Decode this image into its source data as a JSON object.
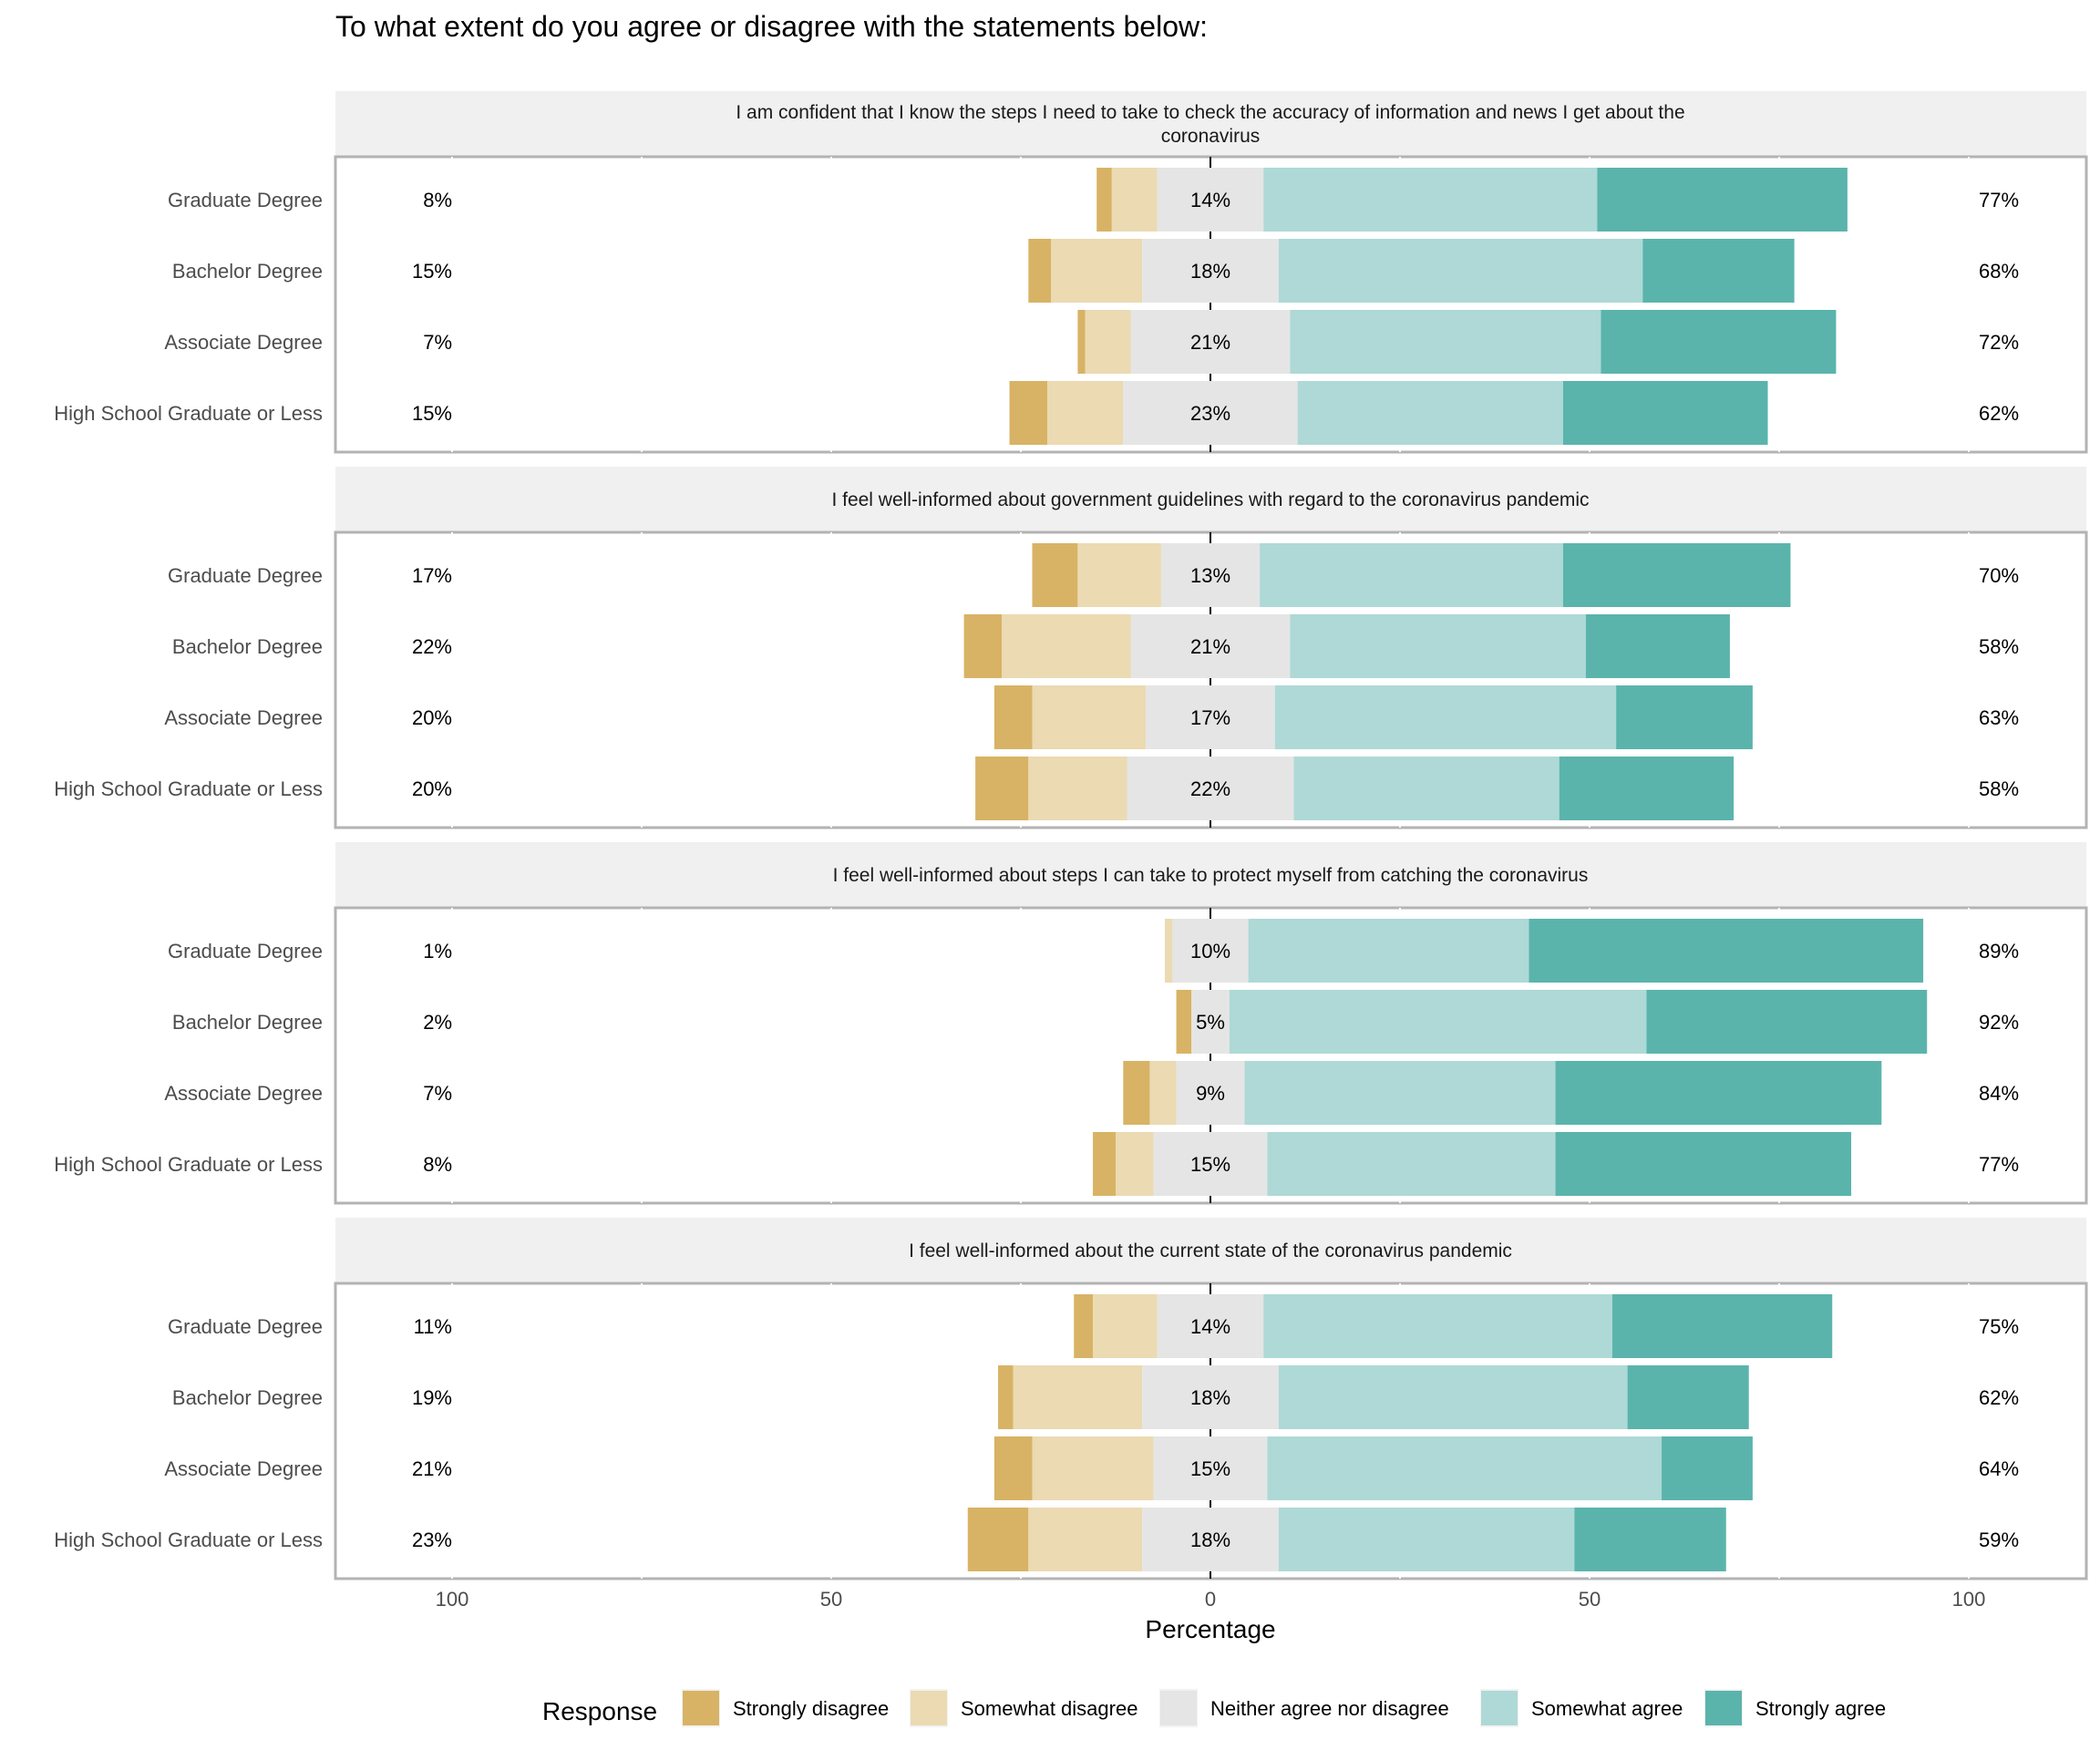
{
  "chart_data": {
    "type": "bar",
    "subtype": "diverging-stacked-horizontal",
    "title": "To what extent do you agree or disagree with the statements below:",
    "xlabel": "Percentage",
    "ylabel": "",
    "xlim": [
      -115,
      115
    ],
    "x_ticks": [
      -100,
      -50,
      0,
      50,
      100
    ],
    "x_tick_labels": [
      "100",
      "50",
      "0",
      "50",
      "100"
    ],
    "grid": true,
    "legend": {
      "title": "Response",
      "position": "bottom",
      "entries": [
        {
          "name": "Strongly disagree",
          "color": "#D8B365"
        },
        {
          "name": "Somewhat disagree",
          "color": "#EBDAB2"
        },
        {
          "name": "Neither agree nor disagree",
          "color": "#E5E5E5"
        },
        {
          "name": "Somewhat agree",
          "color": "#AED9D6"
        },
        {
          "name": "Strongly agree",
          "color": "#5AB4AC"
        }
      ]
    },
    "categories": [
      "Graduate Degree",
      "Bachelor Degree",
      "Associate Degree",
      "High School Graduate or Less"
    ],
    "panels": [
      {
        "strip": [
          "I am confident that I know the steps I need to take to check the accuracy of information and news I get about the",
          "coronavirus"
        ],
        "rows": [
          {
            "category": "Graduate Degree",
            "values": [
              2,
              6,
              14,
              44,
              33
            ],
            "left_label": "8%",
            "center_label": "14%",
            "right_label": "77%"
          },
          {
            "category": "Bachelor Degree",
            "values": [
              3,
              12,
              18,
              48,
              20
            ],
            "left_label": "15%",
            "center_label": "18%",
            "right_label": "68%"
          },
          {
            "category": "Associate Degree",
            "values": [
              1,
              6,
              21,
              41,
              31
            ],
            "left_label": "7%",
            "center_label": "21%",
            "right_label": "72%"
          },
          {
            "category": "High School Graduate or Less",
            "values": [
              5,
              10,
              23,
              35,
              27
            ],
            "left_label": "15%",
            "center_label": "23%",
            "right_label": "62%"
          }
        ]
      },
      {
        "strip": [
          "I feel well-informed about government guidelines with regard to the coronavirus pandemic"
        ],
        "rows": [
          {
            "category": "Graduate Degree",
            "values": [
              6,
              11,
              13,
              40,
              30
            ],
            "left_label": "17%",
            "center_label": "13%",
            "right_label": "70%"
          },
          {
            "category": "Bachelor Degree",
            "values": [
              5,
              17,
              21,
              39,
              19
            ],
            "left_label": "22%",
            "center_label": "21%",
            "right_label": "58%"
          },
          {
            "category": "Associate Degree",
            "values": [
              5,
              15,
              17,
              45,
              18
            ],
            "left_label": "20%",
            "center_label": "17%",
            "right_label": "63%"
          },
          {
            "category": "High School Graduate or Less",
            "values": [
              7,
              13,
              22,
              35,
              23
            ],
            "left_label": "20%",
            "center_label": "22%",
            "right_label": "58%"
          }
        ]
      },
      {
        "strip": [
          "I feel well-informed about steps I can take to protect myself from catching the coronavirus"
        ],
        "rows": [
          {
            "category": "Graduate Degree",
            "values": [
              0,
              1,
              10,
              37,
              52
            ],
            "left_label": "1%",
            "center_label": "10%",
            "right_label": "89%"
          },
          {
            "category": "Bachelor Degree",
            "values": [
              2,
              0,
              5,
              55,
              37
            ],
            "left_label": "2%",
            "center_label": "5%",
            "right_label": "92%"
          },
          {
            "category": "Associate Degree",
            "values": [
              3.5,
              3.5,
              9,
              41,
              43
            ],
            "left_label": "7%",
            "center_label": "9%",
            "right_label": "84%"
          },
          {
            "category": "High School Graduate or Less",
            "values": [
              3,
              5,
              15,
              38,
              39
            ],
            "left_label": "8%",
            "center_label": "15%",
            "right_label": "77%"
          }
        ]
      },
      {
        "strip": [
          "I feel well-informed about the current state of the coronavirus pandemic"
        ],
        "rows": [
          {
            "category": "Graduate Degree",
            "values": [
              2.5,
              8.5,
              14,
              46,
              29
            ],
            "left_label": "11%",
            "center_label": "14%",
            "right_label": "75%"
          },
          {
            "category": "Bachelor Degree",
            "values": [
              2,
              17,
              18,
              46,
              16
            ],
            "left_label": "19%",
            "center_label": "18%",
            "right_label": "62%"
          },
          {
            "category": "Associate Degree",
            "values": [
              5,
              16,
              15,
              52,
              12
            ],
            "left_label": "21%",
            "center_label": "15%",
            "right_label": "64%"
          },
          {
            "category": "High School Graduate or Less",
            "values": [
              8,
              15,
              18,
              39,
              20
            ],
            "left_label": "23%",
            "center_label": "18%",
            "right_label": "59%"
          }
        ]
      }
    ]
  }
}
